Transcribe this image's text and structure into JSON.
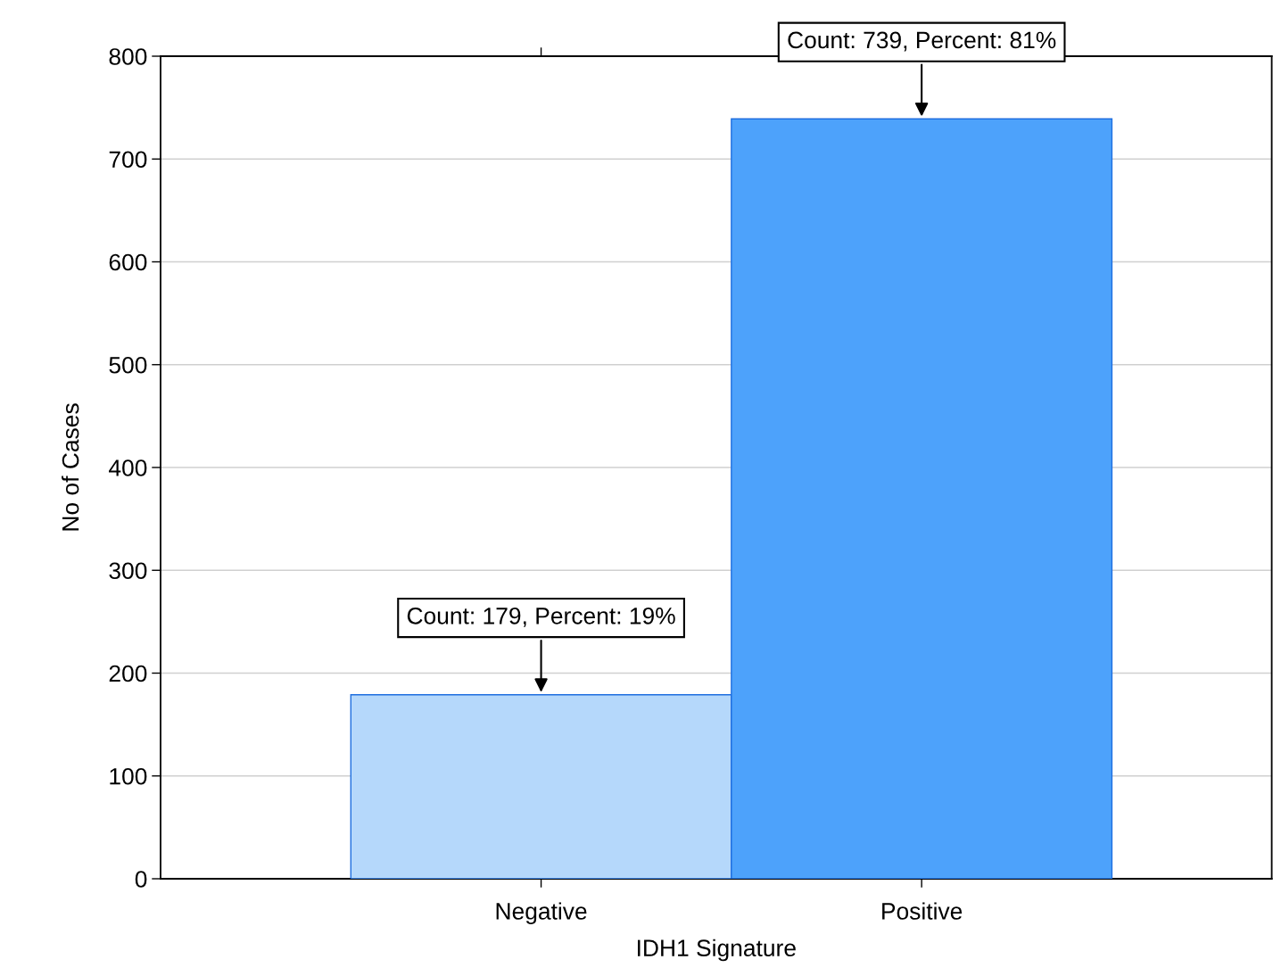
{
  "chart_data": {
    "type": "bar",
    "xlabel": "IDH1 Signature",
    "ylabel": "No of Cases",
    "categories": [
      "Negative",
      "Positive"
    ],
    "values": [
      179,
      739
    ],
    "colors": [
      "#b5d8fb",
      "#4da2fb"
    ],
    "ylim": [
      0,
      800
    ],
    "yticks": [
      0,
      100,
      200,
      300,
      400,
      500,
      600,
      700,
      800
    ],
    "grid": "y",
    "annotations": [
      {
        "text": "Count: 179, Percent: 19%",
        "x": "Negative",
        "y": 179
      },
      {
        "text": "Count: 739, Percent: 81%",
        "x": "Positive",
        "y": 739
      }
    ]
  }
}
